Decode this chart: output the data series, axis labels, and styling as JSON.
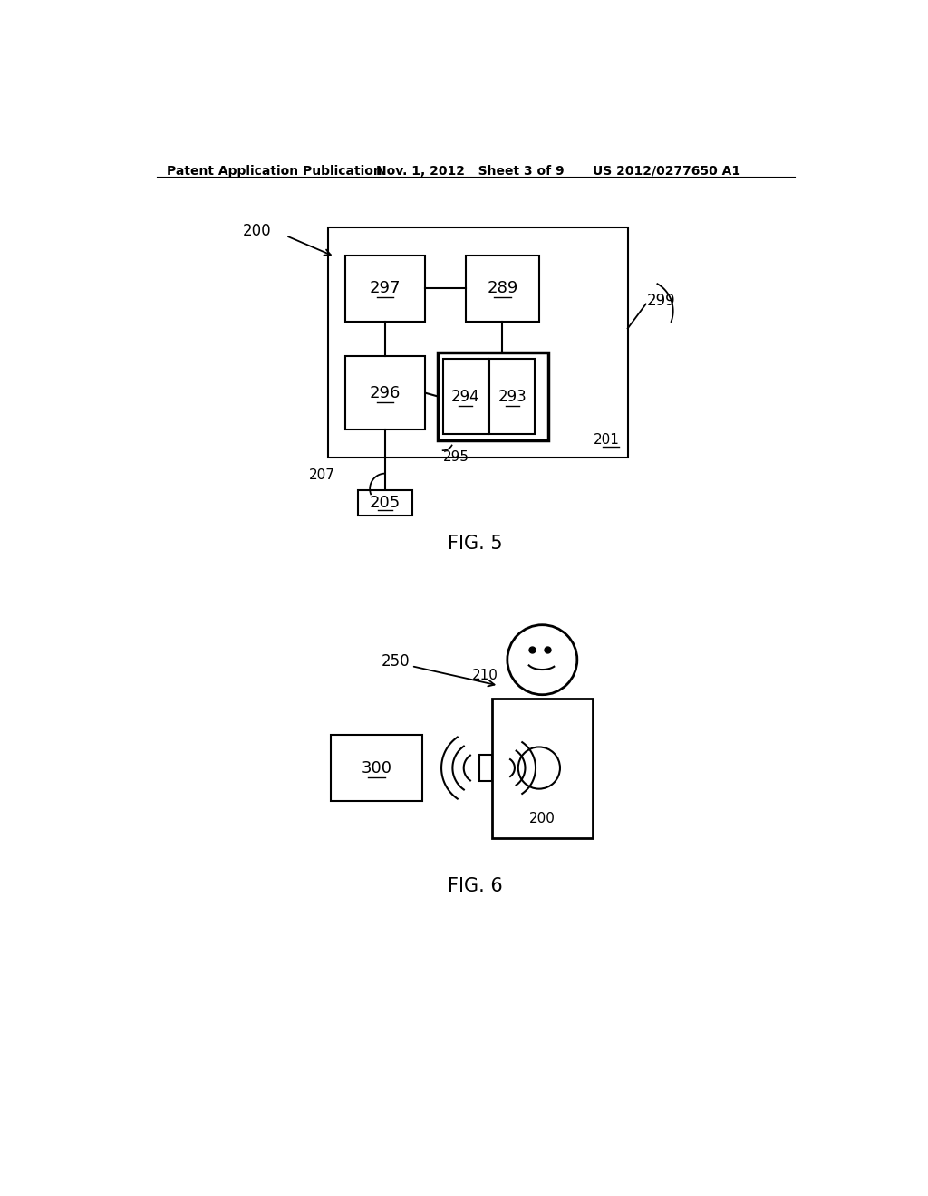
{
  "bg_color": "#ffffff",
  "header_left": "Patent Application Publication",
  "header_center": "Nov. 1, 2012   Sheet 3 of 9",
  "header_right": "US 2012/0277650 A1",
  "fig5_caption": "FIG. 5",
  "fig6_caption": "FIG. 6",
  "label_200_top": "200",
  "label_299": "299",
  "label_201": "201",
  "label_297": "297",
  "label_289": "289",
  "label_296": "296",
  "label_294": "294",
  "label_293": "293",
  "label_295": "295",
  "label_207": "207",
  "label_205": "205",
  "label_250": "250",
  "label_210": "210",
  "label_300": "300",
  "label_200_bottom": "200"
}
